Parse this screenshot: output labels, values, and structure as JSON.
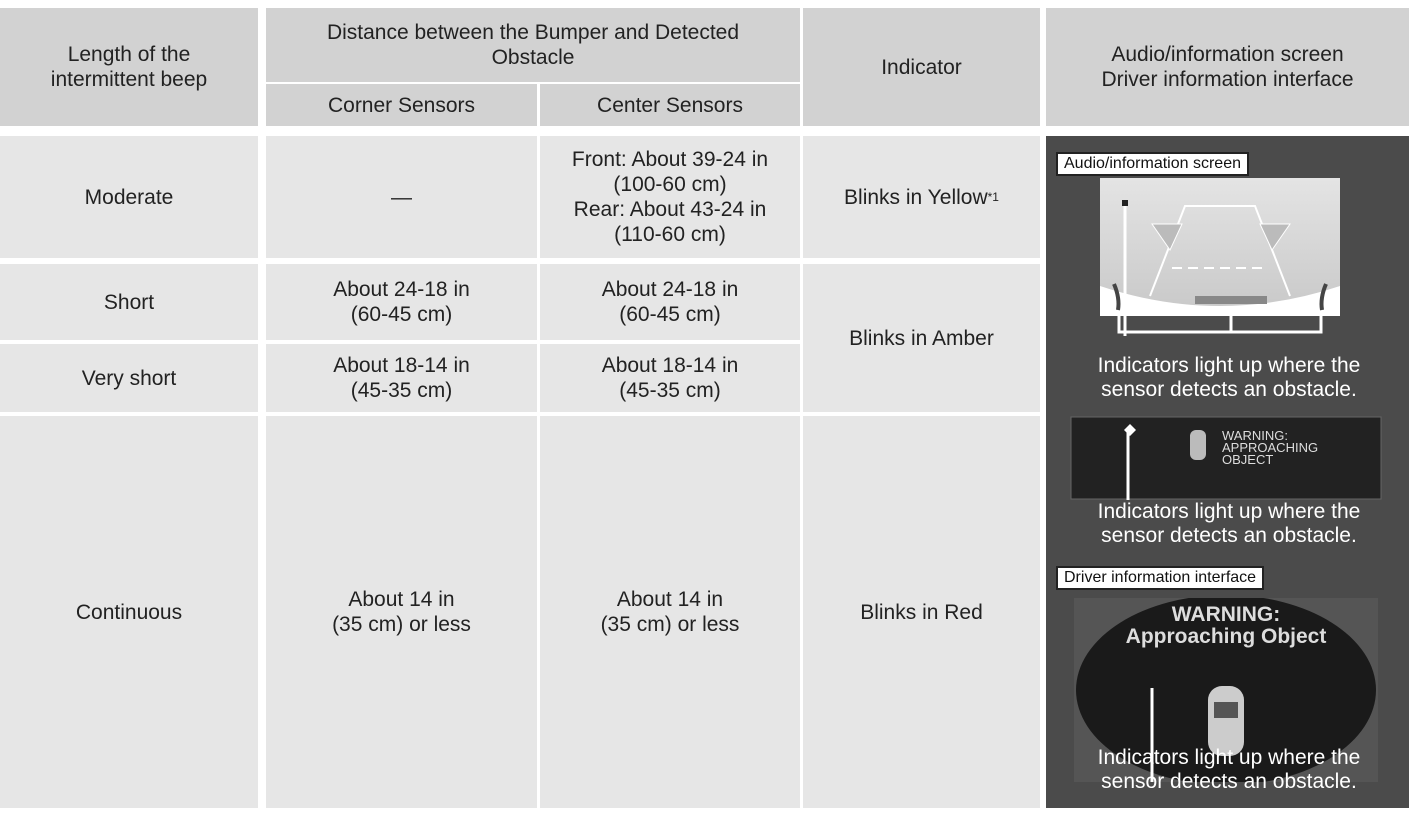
{
  "header": {
    "beep": [
      "Length of the",
      "intermittent beep"
    ],
    "distance": [
      "Distance between the Bumper and Detected",
      "Obstacle"
    ],
    "corner": "Corner Sensors",
    "center": "Center Sensors",
    "indicator": "Indicator",
    "screen": [
      "Audio/information screen",
      "Driver information interface"
    ]
  },
  "rows": [
    {
      "beep": "Moderate",
      "corner": "—",
      "center": [
        "Front: About 39-24 in",
        "(100-60 cm)",
        "Rear: About 43-24 in",
        "(110-60 cm)"
      ],
      "indicator": "Blinks in Yellow",
      "note": "*1"
    },
    {
      "beep": "Short",
      "corner": [
        "About 24-18 in",
        "(60-45 cm)"
      ],
      "center": [
        "About 24-18 in",
        "(60-45 cm)"
      ],
      "indicator": "Blinks in Amber"
    },
    {
      "beep": "Very short",
      "corner": [
        "About 18-14 in",
        "(45-35 cm)"
      ],
      "center": [
        "About 18-14 in",
        "(45-35 cm)"
      ]
    },
    {
      "beep": "Continuous",
      "corner": [
        "About 14 in",
        "(35 cm) or less"
      ],
      "center": [
        "About 14 in",
        "(35 cm) or less"
      ],
      "indicator": "Blinks in Red"
    }
  ],
  "panels": {
    "audio_label": "Audio/information screen",
    "caption_1": [
      "Indicators light up where the",
      "sensor detects an obstacle."
    ],
    "warning_1": [
      "WARNING:",
      "APPROACHING",
      "OBJECT"
    ],
    "caption_2": [
      "Indicators light up where the",
      "sensor detects an obstacle."
    ],
    "driver_label": "Driver information interface",
    "warning_2": [
      "WARNING:",
      "Approaching Object"
    ],
    "caption_3": [
      "Indicators light up where the",
      "sensor detects an obstacle."
    ]
  }
}
